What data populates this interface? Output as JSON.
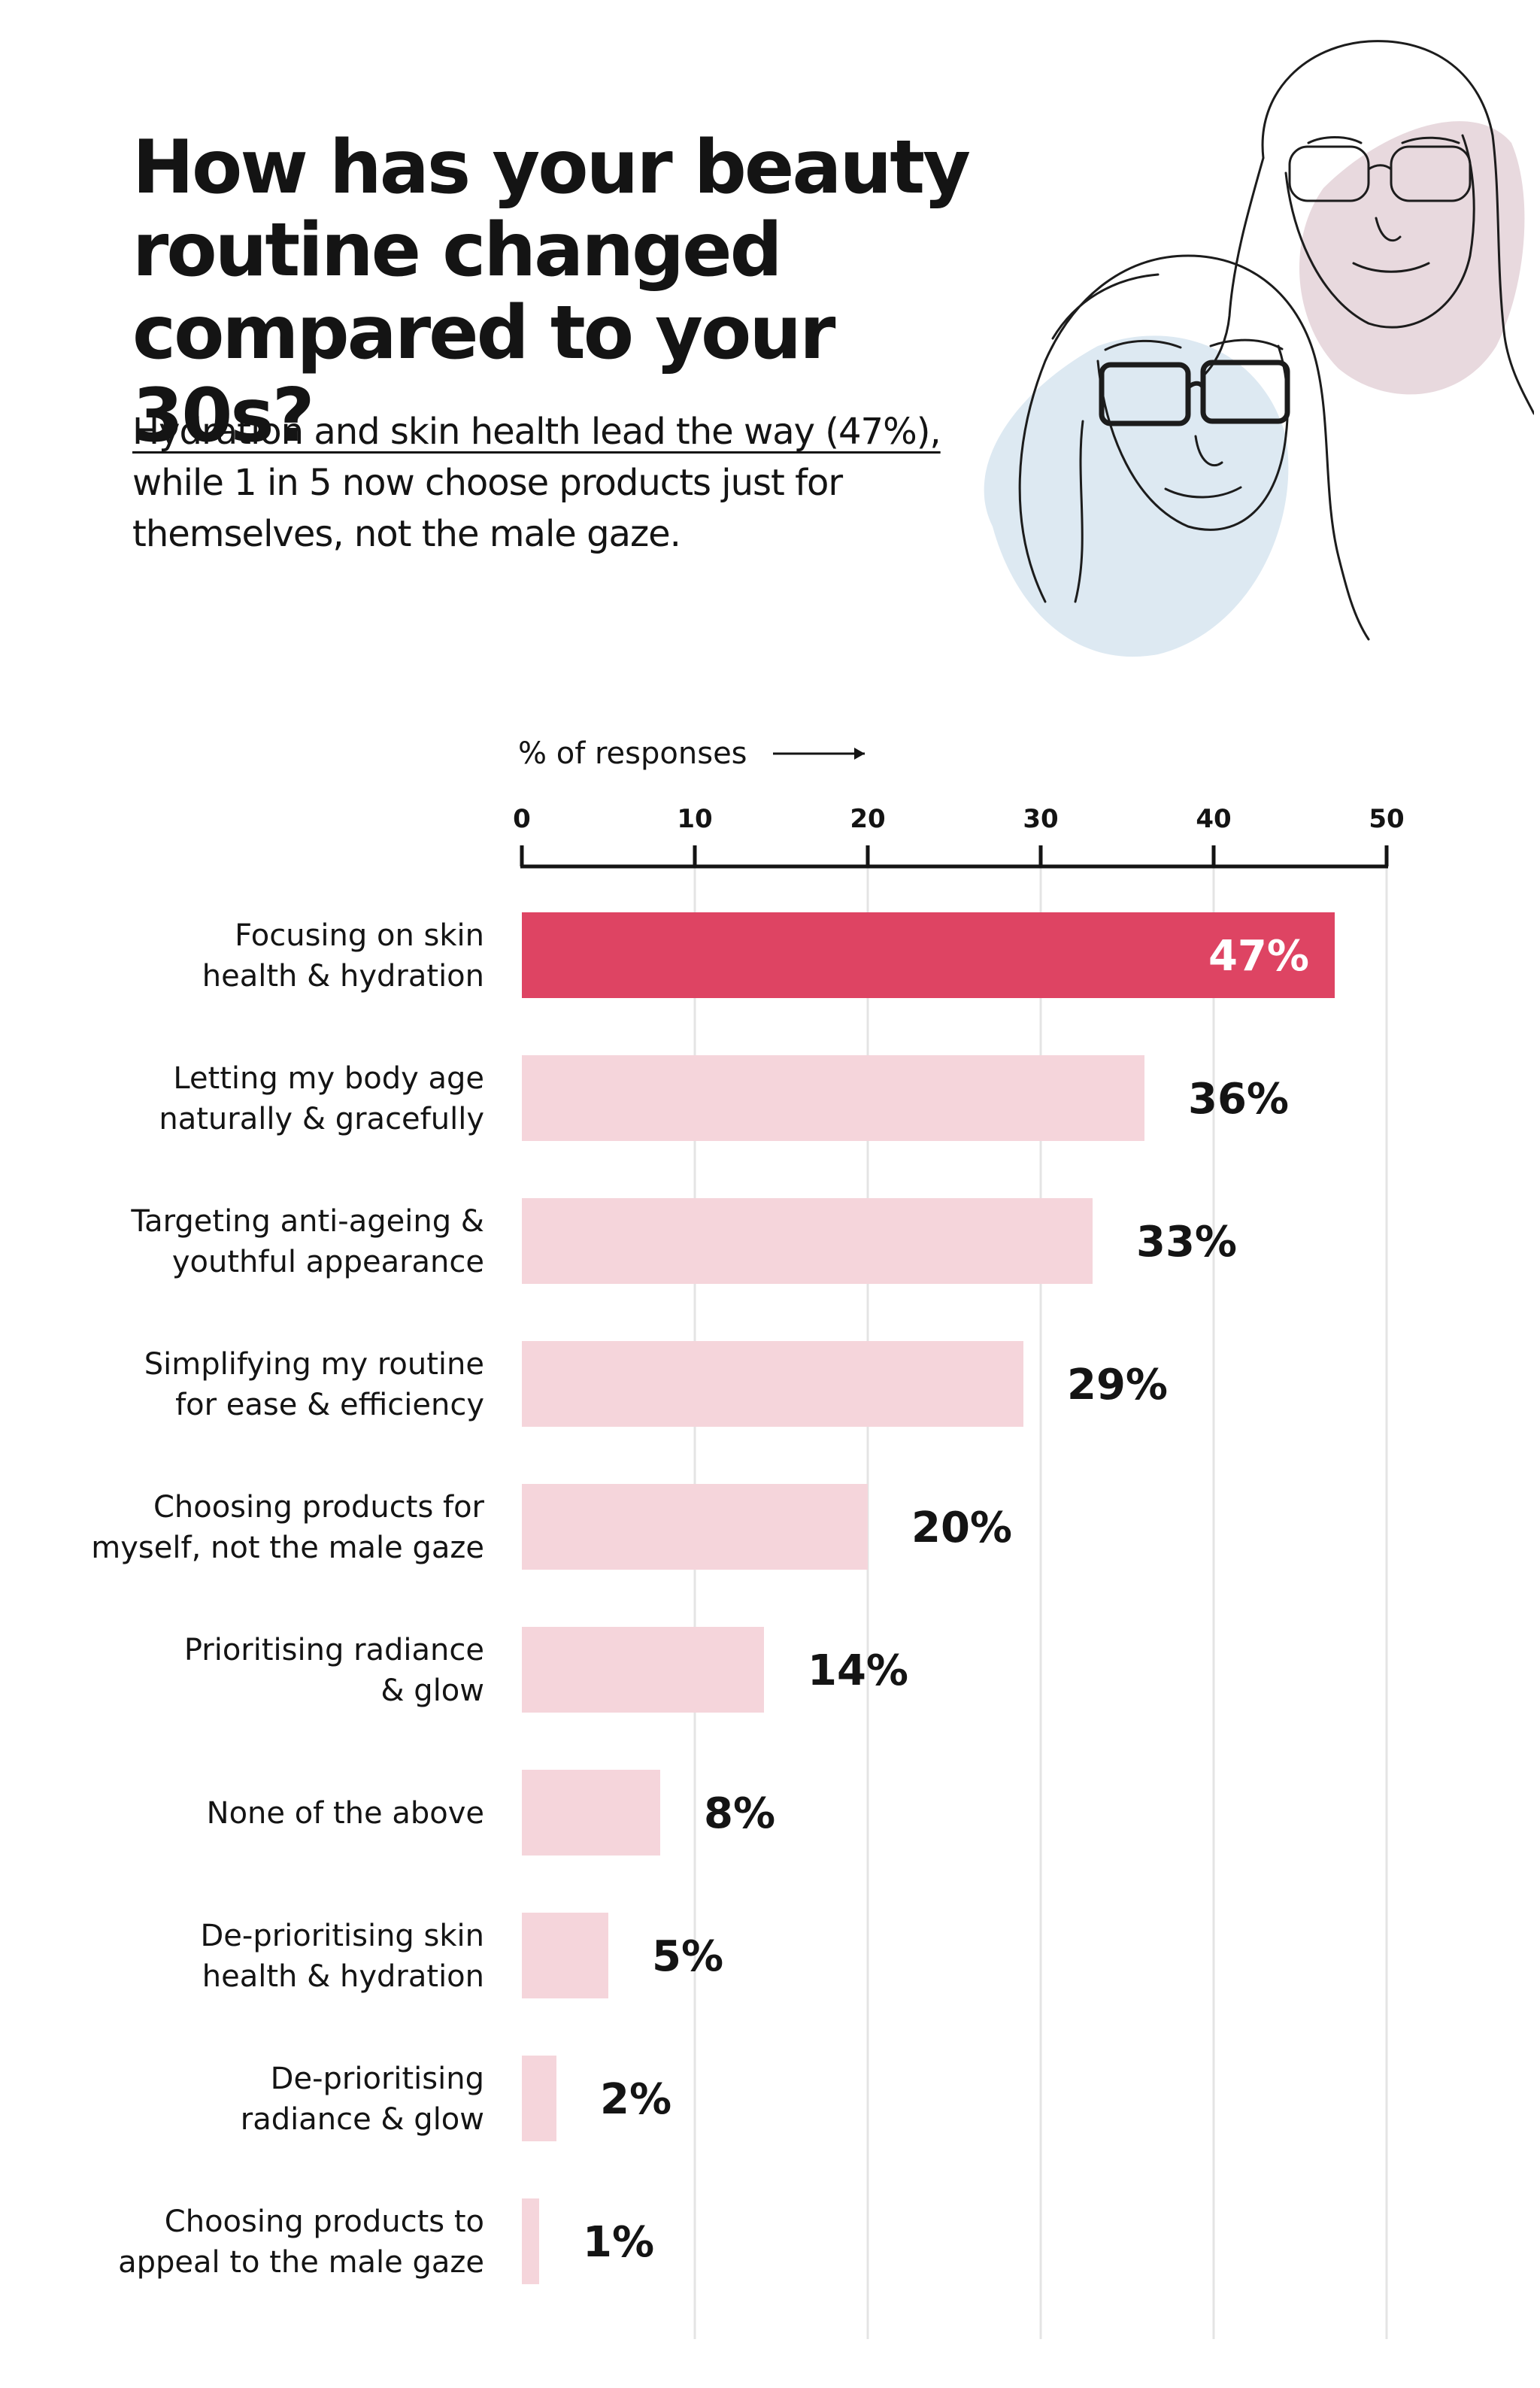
{
  "title_lines": [
    "How has your beauty",
    "routine changed",
    "compared to your 30s?"
  ],
  "subtitle": {
    "highlight": "Hydration and skin health lead the way (47%),",
    "line2": "while 1 in 5 now choose products just for",
    "line3": "themselves, not the male gaze."
  },
  "colors": {
    "highlight_bar": "#de4463",
    "bar": "#f5d5db",
    "text": "#141414",
    "grid": "#e4e4e4",
    "blob_blue": "#dde9f2",
    "blob_mauve": "#e8d9de"
  },
  "chart_data": {
    "type": "bar",
    "orientation": "horizontal",
    "xlabel": "% of responses",
    "xlim": [
      0,
      50
    ],
    "ticks": [
      0,
      10,
      20,
      30,
      40,
      50
    ],
    "highlight_index": 0,
    "categories": [
      [
        "Focusing on skin",
        "health & hydration"
      ],
      [
        "Letting my body age",
        "naturally & gracefully"
      ],
      [
        "Targeting anti-ageing &",
        "youthful appearance"
      ],
      [
        "Simplifying my routine",
        "for ease & efficiency"
      ],
      [
        "Choosing products for",
        "myself, not the male gaze"
      ],
      [
        "Prioritising radiance",
        "& glow"
      ],
      [
        "None of the above"
      ],
      [
        "De-prioritising skin",
        "health & hydration"
      ],
      [
        "De-prioritising",
        "radiance & glow"
      ],
      [
        "Choosing products to",
        "appeal to the male gaze"
      ]
    ],
    "values": [
      47,
      36,
      33,
      29,
      20,
      14,
      8,
      5,
      2,
      1
    ],
    "value_labels": [
      "47%",
      "36%",
      "33%",
      "29%",
      "20%",
      "14%",
      "8%",
      "5%",
      "2%",
      "1%"
    ]
  }
}
